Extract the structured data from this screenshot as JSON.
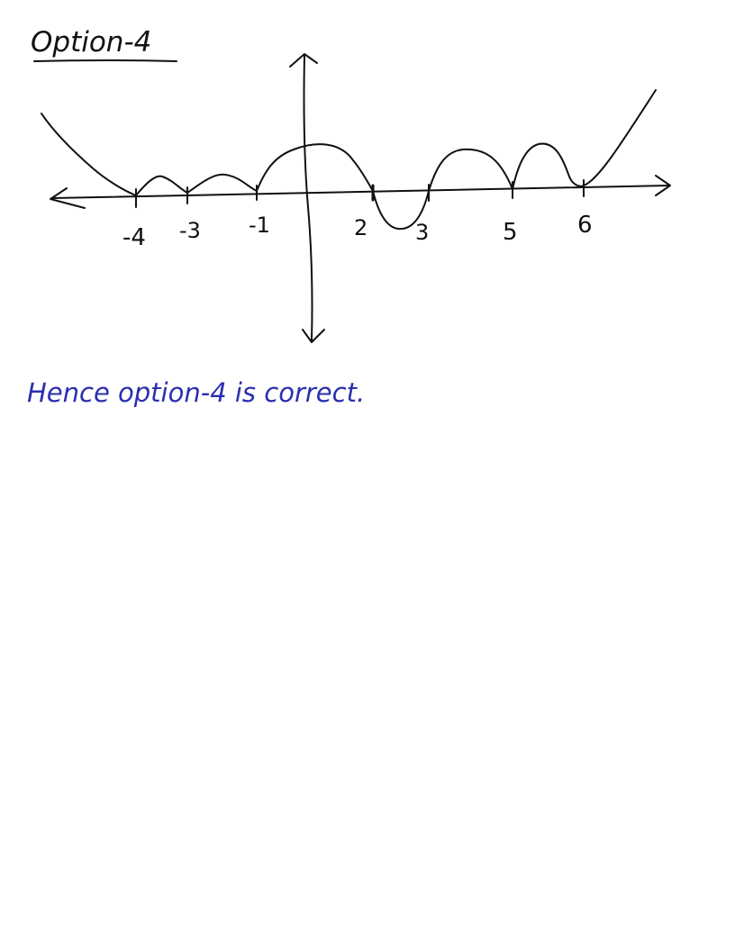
{
  "heading": "Option-4",
  "conclusion": "Hence option-4 is correct.",
  "x_tick_labels": [
    "-4",
    "-3",
    "-1",
    "2",
    "3",
    "5",
    "6"
  ],
  "colors": {
    "ink_black": "#111111",
    "ink_blue": "#2b2fb0",
    "background": "#ffffff"
  }
}
